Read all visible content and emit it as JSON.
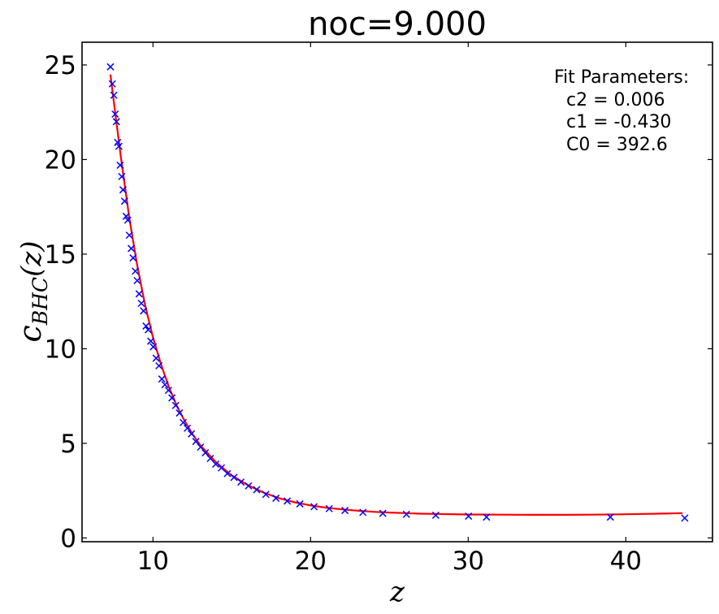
{
  "chart_data": {
    "type": "scatter",
    "title": "noc=9.000",
    "xlabel": "z",
    "ylabel_base": "c",
    "ylabel_sub": "BHC",
    "ylabel_tail": "(z)",
    "xlim": [
      5.5,
      45.5
    ],
    "ylim": [
      -0.2,
      26.2
    ],
    "xticks": [
      10,
      20,
      30,
      40
    ],
    "yticks": [
      0,
      5,
      10,
      15,
      20,
      25
    ],
    "grid": false,
    "series": [
      {
        "kind": "points",
        "marker": "x",
        "color": "#0000ff",
        "x": [
          7.3,
          7.42,
          7.52,
          7.6,
          7.68,
          7.76,
          7.84,
          7.92,
          8.02,
          8.1,
          8.2,
          8.3,
          8.4,
          8.5,
          8.62,
          8.74,
          8.88,
          9.0,
          9.12,
          9.26,
          9.4,
          9.56,
          9.7,
          9.86,
          10.02,
          10.2,
          10.38,
          10.56,
          10.76,
          10.98,
          11.2,
          11.44,
          11.68,
          11.92,
          12.18,
          12.44,
          12.72,
          13.02,
          13.32,
          13.64,
          13.98,
          14.34,
          14.72,
          15.14,
          15.58,
          16.06,
          16.58,
          17.16,
          17.8,
          18.52,
          19.32,
          20.22,
          21.18,
          22.18,
          23.32,
          24.58,
          26.08,
          27.94,
          30.02,
          31.16,
          39.02,
          43.74
        ],
        "y": [
          24.9,
          24.0,
          23.4,
          22.4,
          22.0,
          20.9,
          20.7,
          19.7,
          19.1,
          18.4,
          17.8,
          17.0,
          16.8,
          16.0,
          15.3,
          14.8,
          14.1,
          13.6,
          12.9,
          12.4,
          12.0,
          11.2,
          11.0,
          10.4,
          10.1,
          9.5,
          9.1,
          8.4,
          8.1,
          7.8,
          7.4,
          7.0,
          6.6,
          6.1,
          5.8,
          5.5,
          5.1,
          4.8,
          4.5,
          4.2,
          3.9,
          3.7,
          3.4,
          3.2,
          2.95,
          2.75,
          2.55,
          2.3,
          2.1,
          1.95,
          1.8,
          1.65,
          1.55,
          1.45,
          1.35,
          1.3,
          1.25,
          1.2,
          1.15,
          1.1,
          1.1,
          1.05
        ]
      },
      {
        "kind": "line",
        "color": "#ff0000",
        "x": [
          7.3,
          7.6,
          8.0,
          8.5,
          9.0,
          9.5,
          10.0,
          10.5,
          11.0,
          11.5,
          12.0,
          12.5,
          13.0,
          13.5,
          14.0,
          15.0,
          16.0,
          17.0,
          18.0,
          19.0,
          20.0,
          21.0,
          22.0,
          23.0,
          24.0,
          25.0,
          26.0,
          27.0,
          28.0,
          30.0,
          32.0,
          34.0,
          36.0,
          38.0,
          40.0,
          42.0,
          43.6
        ],
        "y": [
          24.5,
          22.5,
          19.9,
          16.9,
          14.4,
          12.3,
          10.6,
          9.2,
          8.0,
          7.0,
          6.2,
          5.5,
          4.9,
          4.45,
          4.0,
          3.3,
          2.8,
          2.4,
          2.1,
          1.88,
          1.72,
          1.6,
          1.51,
          1.44,
          1.38,
          1.34,
          1.31,
          1.28,
          1.27,
          1.24,
          1.23,
          1.22,
          1.22,
          1.23,
          1.25,
          1.28,
          1.31
        ]
      }
    ],
    "annotation": {
      "heading": "Fit Parameters:",
      "lines": [
        "c2 = 0.006",
        "c1 = -0.430",
        "C0 = 392.6"
      ]
    }
  }
}
